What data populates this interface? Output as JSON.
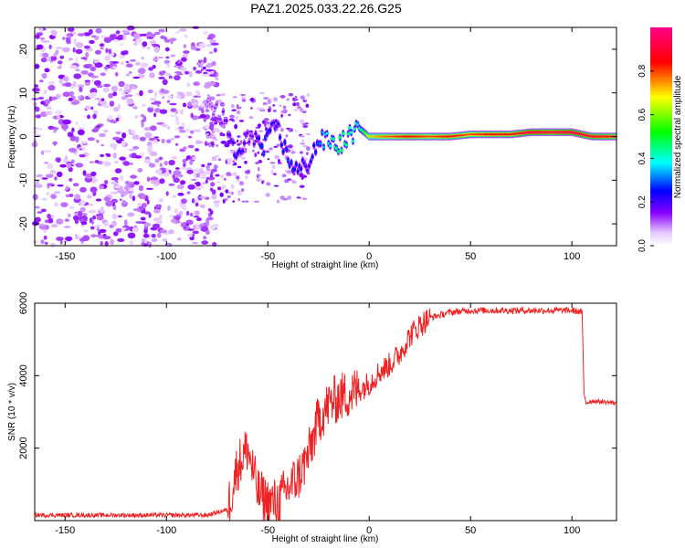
{
  "title": "PAZ1.2025.033.22.26.G25",
  "colors": {
    "snr_line": "#ee2222",
    "spectrum_noise": "#8800ff",
    "frame": "#000000"
  },
  "chart_data": [
    {
      "type": "heatmap",
      "title": "PAZ1.2025.033.22.26.G25",
      "xlabel": "Height of straight line (km)",
      "ylabel": "Frequency (Hz)",
      "xlim": [
        -165,
        122
      ],
      "ylim": [
        -25,
        25
      ],
      "xticks": [
        "-150",
        "-100",
        "-50",
        "0",
        "50",
        "100"
      ],
      "xtick_values": [
        -150,
        -100,
        -50,
        0,
        50,
        100
      ],
      "yticks": [
        "-20",
        "-10",
        "0",
        "10",
        "20"
      ],
      "ytick_values": [
        -20,
        -10,
        0,
        10,
        20
      ],
      "colorbar": {
        "label": "Normalized spectral amplitude",
        "range": [
          0,
          1
        ],
        "ticks": [
          "0.0",
          "0.2",
          "0.4",
          "0.6",
          "0.8"
        ],
        "tick_values": [
          0,
          0.2,
          0.4,
          0.6,
          0.8
        ],
        "colormap": "rainbow (white-purple-blue-cyan-green-yellow-red-magenta)"
      },
      "ridge": {
        "x": [
          -80,
          -72,
          -65,
          -58,
          -52,
          -46,
          -40,
          -35,
          -30,
          -25,
          -20,
          -15,
          -10,
          -5,
          0,
          10,
          20,
          30,
          40,
          50,
          60,
          70,
          80,
          90,
          100,
          110,
          122
        ],
        "frequency": [
          8,
          4,
          -5,
          1,
          -3,
          3,
          -5,
          -8,
          -6,
          -1,
          -1,
          -2,
          0,
          2,
          0,
          0,
          0,
          0,
          0,
          0.5,
          0.5,
          0.5,
          1,
          1,
          1,
          0,
          0
        ],
        "amplitude": [
          0.1,
          0.15,
          0.25,
          0.15,
          0.3,
          0.2,
          0.3,
          0.25,
          0.2,
          0.3,
          0.4,
          0.5,
          0.45,
          0.4,
          0.7,
          0.8,
          0.85,
          0.8,
          0.85,
          0.8,
          0.85,
          0.85,
          0.95,
          0.9,
          0.95,
          0.9,
          0.85
        ]
      }
    },
    {
      "type": "line",
      "xlabel": "Height of straight line (km)",
      "ylabel": "SNR (10 * v/v)",
      "xlim": [
        -165,
        122
      ],
      "ylim": [
        0,
        6000
      ],
      "xticks": [
        "-150",
        "-100",
        "-50",
        "0",
        "50",
        "100"
      ],
      "xtick_values": [
        -150,
        -100,
        -50,
        0,
        50,
        100
      ],
      "yticks": [
        "2000",
        "4000",
        "6000"
      ],
      "ytick_values": [
        2000,
        4000,
        6000
      ],
      "series": [
        {
          "x": [
            -165,
            -150,
            -120,
            -100,
            -80,
            -70,
            -65,
            -60,
            -55,
            -50,
            -45,
            -40,
            -35,
            -30,
            -25,
            -20,
            -15,
            -10,
            -5,
            0,
            5,
            10,
            15,
            20,
            25,
            30,
            40,
            50,
            60,
            70,
            80,
            90,
            100,
            105,
            106,
            107,
            110,
            122
          ],
          "values": [
            150,
            150,
            150,
            150,
            150,
            300,
            1500,
            2000,
            800,
            500,
            500,
            900,
            1200,
            1800,
            2800,
            3200,
            3400,
            3500,
            3600,
            3800,
            4100,
            4300,
            4600,
            5100,
            5400,
            5600,
            5750,
            5800,
            5800,
            5800,
            5800,
            5800,
            5800,
            5750,
            3500,
            3250,
            3300,
            3250
          ]
        }
      ]
    }
  ]
}
